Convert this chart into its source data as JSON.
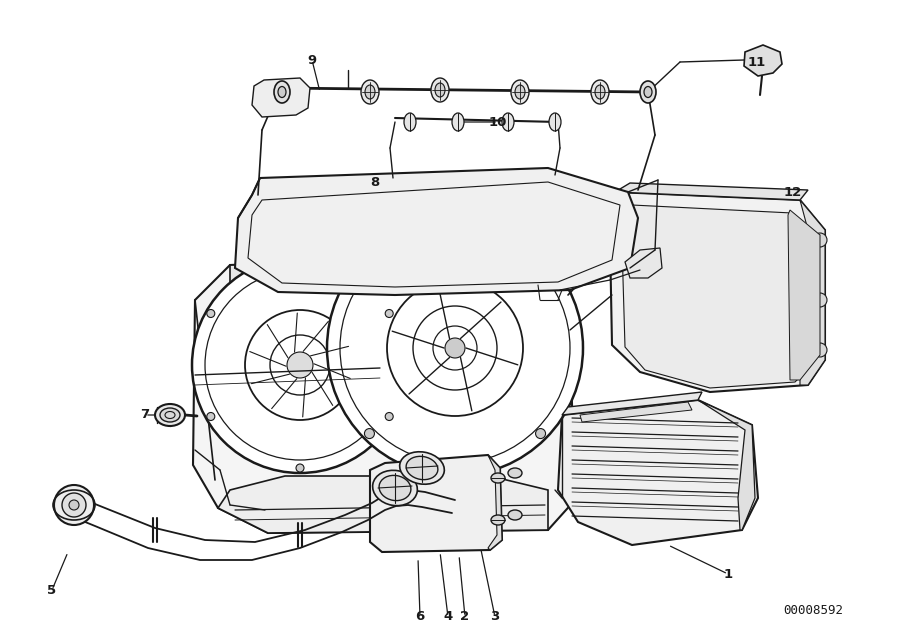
{
  "bg_color": "#ffffff",
  "line_color": "#1a1a1a",
  "diagram_id": "00008592",
  "figsize": [
    9.0,
    6.35
  ],
  "dpi": 100
}
